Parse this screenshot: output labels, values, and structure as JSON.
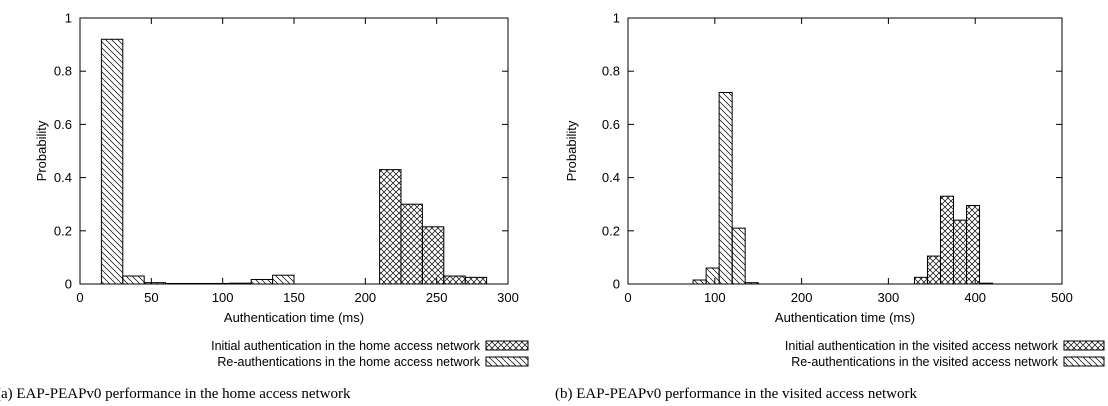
{
  "chart_data": [
    {
      "type": "bar",
      "caption": "(a) EAP-PEAPv0 performance in the home access network",
      "xlabel": "Authentication time (ms)",
      "ylabel": "Probability",
      "xlim": [
        0,
        300
      ],
      "ylim": [
        0,
        1
      ],
      "xticks": [
        "0",
        "50",
        "100",
        "150",
        "200",
        "250",
        "300"
      ],
      "yticks": [
        "0",
        "0.2",
        "0.4",
        "0.6",
        "0.8",
        "1"
      ],
      "bin_width": 15,
      "grid": false,
      "legend_position": "below",
      "series": [
        {
          "name": "Initial authentication in the home access network",
          "pattern": "crosshatch",
          "x": [
            210,
            225,
            240,
            255,
            270
          ],
          "values": [
            0.43,
            0.3,
            0.215,
            0.03,
            0.025
          ]
        },
        {
          "name": "Re-authentications in the home access network",
          "pattern": "diagonal",
          "x": [
            15,
            30,
            45,
            60,
            75,
            90,
            105,
            120,
            135
          ],
          "values": [
            0.92,
            0.03,
            0.005,
            0.002,
            0.002,
            0.002,
            0.003,
            0.017,
            0.033
          ]
        }
      ]
    },
    {
      "type": "bar",
      "caption": "(b) EAP-PEAPv0 performance in the visited access network",
      "xlabel": "Authentication time (ms)",
      "ylabel": "Probability",
      "xlim": [
        0,
        500
      ],
      "ylim": [
        0,
        1
      ],
      "xticks": [
        "0",
        "100",
        "200",
        "300",
        "400",
        "500"
      ],
      "yticks": [
        "0",
        "0.2",
        "0.4",
        "0.6",
        "0.8",
        "1"
      ],
      "bin_width": 15,
      "grid": false,
      "legend_position": "below",
      "series": [
        {
          "name": "Initial authentication in the visited access network",
          "pattern": "crosshatch",
          "x": [
            330,
            345,
            360,
            375,
            390,
            405
          ],
          "values": [
            0.025,
            0.105,
            0.33,
            0.24,
            0.295,
            0.003
          ]
        },
        {
          "name": "Re-authentications in the visited access network",
          "pattern": "diagonal",
          "x": [
            75,
            90,
            105,
            120,
            135
          ],
          "values": [
            0.015,
            0.06,
            0.72,
            0.21,
            0.005
          ]
        }
      ]
    }
  ]
}
